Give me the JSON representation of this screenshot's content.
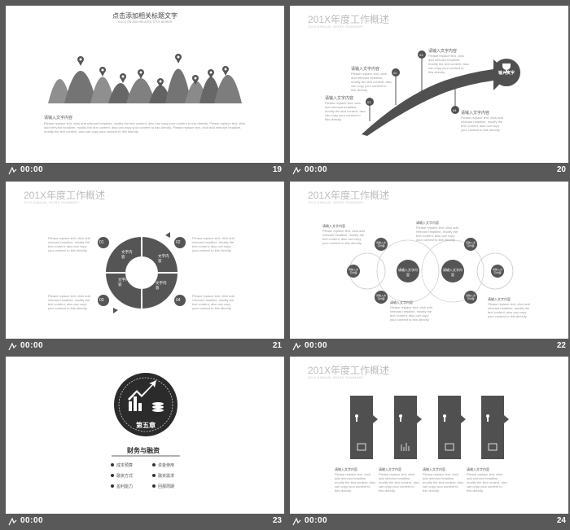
{
  "slides": [
    {
      "number": "19",
      "time": "00:00",
      "title": "点击添加相关标题文字",
      "subtitle": "CLICK ON ADD RELATED TITLE WORDS",
      "text_heading": "请输入文字内容",
      "text_body": "Please replace text, click add relevant headline, modify the text content, also can copy your content to this directly. Please replace text, click add relevant headline, modify the text content, also can copy your content to this directly. Please replace text, click add relevant headline, modify the text content, also can copy your content to this directly."
    },
    {
      "number": "20",
      "time": "00:00",
      "title": "201X年度工作概述",
      "subtitle": "201X ANNUAL WORK SUMMARY",
      "end_label": "输入文字",
      "steps": [
        {
          "num": "01",
          "heading": "请输入文字内容",
          "text": "Please replace text, click add relevant headline, modify the text content, also can copy your content to this directly."
        },
        {
          "num": "02",
          "heading": "请输入文字内容",
          "text": "Please replace text, click add relevant headline, modify the text content, also can copy your content to this directly."
        },
        {
          "num": "03",
          "heading": "请输入文字内容",
          "text": "Please replace text, click add relevant headline, modify the text content, also can copy your content to this directly."
        },
        {
          "num": "04",
          "heading": "请输入文字内容",
          "text": "Please replace text, click add relevant headline, modify the text content, also can copy your content to this directly."
        }
      ]
    },
    {
      "number": "21",
      "time": "00:00",
      "title": "201X年度工作概述",
      "subtitle": "201X ANNUAL WORK SUMMARY",
      "segment_label": "文字内容",
      "items": [
        {
          "num": "01",
          "text": "Please replace text, click add relevant headline, modify the text content, also can copy your content to this directly."
        },
        {
          "num": "02",
          "text": "Please replace text, click add relevant headline, modify the text content, also can copy your content to this directly."
        },
        {
          "num": "03",
          "text": "Please replace text, click add relevant headline, modify the text content, also can copy your content to this directly."
        },
        {
          "num": "04",
          "text": "Please replace text, click add relevant headline, modify the text content, also can copy your content to this directly."
        }
      ]
    },
    {
      "number": "22",
      "time": "00:00",
      "title": "201X年度工作概述",
      "subtitle": "201X ANNUAL WORK SUMMARY",
      "center_label": "请输入文字内容",
      "node_label": "请输入文字内容",
      "text_heading": "请输入文字内容",
      "text_body": "Please replace text, click add relevant headline, modify the text content, also can copy your content to this directly."
    },
    {
      "number": "23",
      "time": "00:00",
      "chapter": "第五章",
      "chapter_title": "财务与融资",
      "options": [
        "成本预算",
        "资金使用",
        "融资方式",
        "融资需求",
        "盈利能力",
        "回报周期"
      ]
    },
    {
      "number": "24",
      "time": "00:00",
      "title": "201X年度工作概述",
      "subtitle": "201X ANNUAL WORK SUMMARY",
      "text_heading": "请输入文字内容",
      "text_body": "Please replace text, click add relevant headline, modify the text content, also can copy your content to this directly."
    }
  ]
}
